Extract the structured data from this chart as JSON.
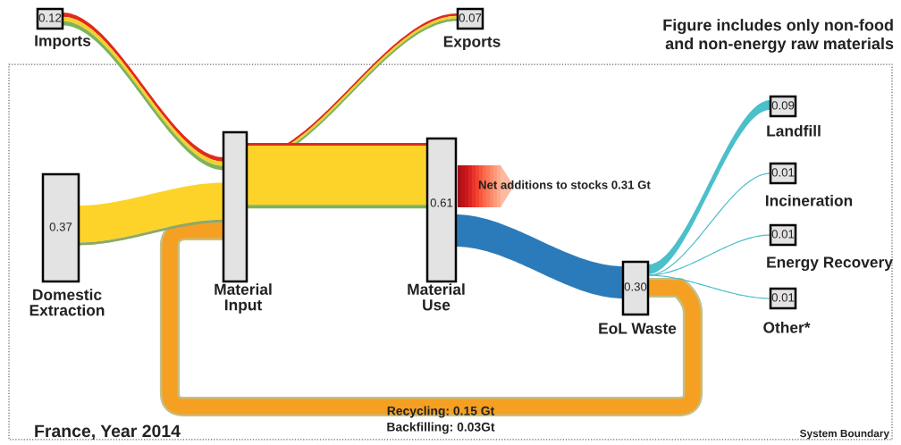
{
  "chart_data": {
    "type": "other",
    "title": "France, Year 2014",
    "categories": [
      "Imports",
      "Exports",
      "Domestic Extraction",
      "Material Input",
      "Material Use",
      "EoL Waste",
      "Landfill",
      "Incineration",
      "Energy Recovery",
      "Other*"
    ],
    "values": [
      0.12,
      0.07,
      0.37,
      null,
      0.61,
      0.3,
      0.09,
      0.01,
      0.01,
      0.01
    ],
    "value_labels": [
      "0.12",
      "0.07",
      "0.37",
      null,
      "0.61",
      "0.30",
      "0.09",
      "0.01",
      "0.01",
      "0.01"
    ],
    "annotations": [
      "Figure includes only non-food\nand non-energy raw materials",
      "Net additions to stocks 0.31 Gt",
      "Recycling: 0.15 Gt",
      "Backfilling: 0.03Gt",
      "System Boundary"
    ]
  }
}
